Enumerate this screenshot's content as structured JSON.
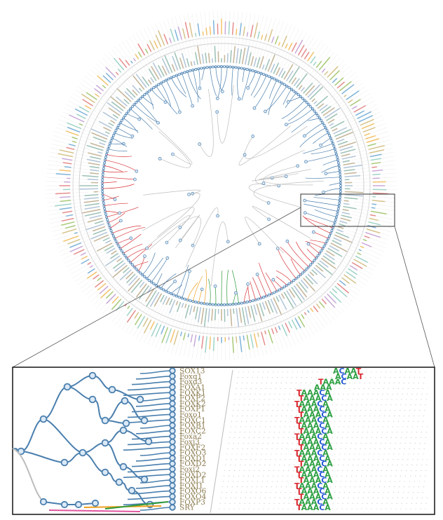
{
  "figure": {
    "colors": {
      "branch_main": "#4a7fae",
      "branch_alt": "#d8363a",
      "branch_grey": "#bdbdbd",
      "branch_green": "#2f9a3a",
      "branch_orange": "#f0a020",
      "branch_pink": "#e0559e",
      "node_fill": "#dbe9f6",
      "label_color": "#8a7a4e",
      "inset_border": "#222222",
      "highlight_border": "#333333"
    },
    "inset": {
      "leaf_labels": [
        "SOX13",
        "Foxq1",
        "Foxd3",
        "FOXA1",
        "FOXK1",
        "FOXP2",
        "FOXK2",
        "FOXP1",
        "Foxo1",
        "FOXC1",
        "FOXB1",
        "FOXC2",
        "Foxa2",
        "Foxj3",
        "FOXF2",
        "FOXO3",
        "FOXD1",
        "FOXD2",
        "Foxi2",
        "FOXD2",
        "FOXL1",
        "FOXJ1",
        "FOXO6",
        "FOXO4",
        "FOXP3",
        "SRY"
      ],
      "motif_words": [
        "ACAAT",
        "ACAAT",
        "TAAAC",
        "AAA",
        "TAAACA",
        "TAAACA",
        "TAAACA",
        "TAAACA",
        "TAAACA",
        "TAAACA",
        "TAAACA",
        "TAAACA",
        "TAAACA",
        "TAAACA",
        "TAAACA",
        "TAAACA",
        "TAAACA",
        "TAAACA",
        "TAAACA",
        "TAAACA",
        "TAAACA",
        "TAAACA",
        "TAAACA",
        "TAAACA",
        "TAAACA",
        "TAAACA"
      ]
    }
  }
}
